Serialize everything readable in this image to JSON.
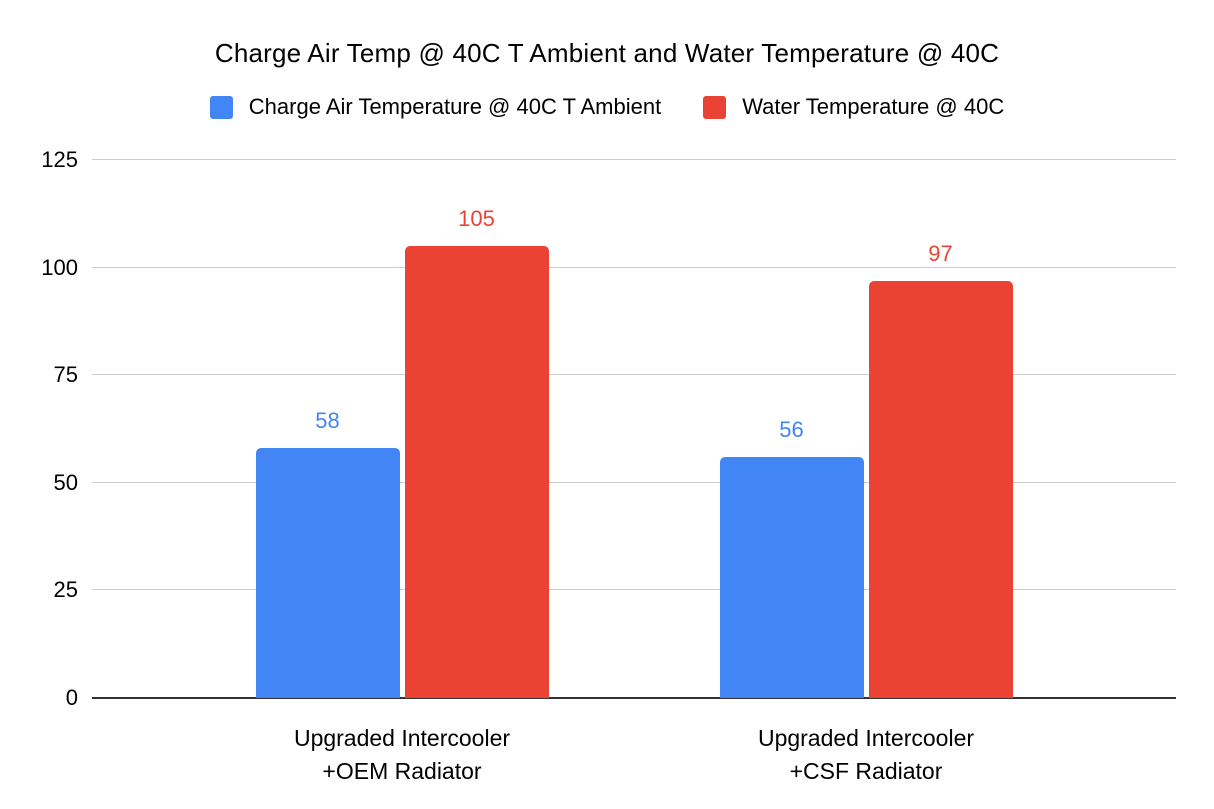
{
  "chart_data": {
    "type": "bar",
    "title": "Charge Air Temp @ 40C T Ambient and Water Temperature @ 40C",
    "categories": [
      "Upgraded Intercooler\n+OEM Radiator",
      "Upgraded Intercooler\n+CSF Radiator"
    ],
    "series": [
      {
        "name": "Charge Air Temperature @ 40C T Ambient",
        "color": "#4285F4",
        "values": [
          58,
          56
        ]
      },
      {
        "name": "Water Temperature @ 40C",
        "color": "#EA4335",
        "values": [
          105,
          97
        ]
      }
    ],
    "data_labels": [
      {
        "series": 0,
        "values": [
          "58",
          "56"
        ]
      },
      {
        "series": 1,
        "values": [
          "105",
          "97"
        ]
      }
    ],
    "y_ticks": [
      0,
      25,
      50,
      75,
      100,
      125
    ],
    "ylim": [
      0,
      125
    ],
    "xlabel": "",
    "ylabel": "",
    "grid": true,
    "legend_position": "top",
    "colors": {
      "background": "#ffffff",
      "gridline": "#cccccc",
      "baseline": "#333333",
      "text": "#000000"
    }
  }
}
